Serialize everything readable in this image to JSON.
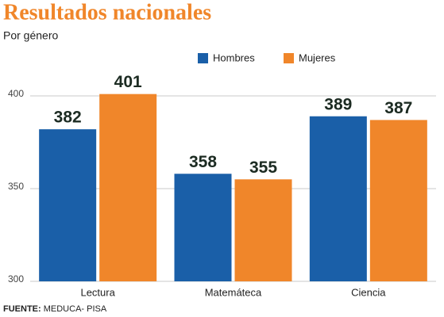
{
  "chart_data": {
    "type": "bar",
    "title": "Resultados nacionales",
    "subtitle": "Por género",
    "categories": [
      "Lectura",
      "Matemáteca",
      "Ciencia"
    ],
    "series": [
      {
        "name": "Hombres",
        "color": "#1a5fa8",
        "values": [
          382,
          358,
          389
        ]
      },
      {
        "name": "Mujeres",
        "color": "#f0862a",
        "values": [
          401,
          355,
          387
        ]
      }
    ],
    "ylim": [
      300,
      410
    ],
    "yticks": [
      300,
      350,
      400
    ],
    "grid": true,
    "source_label": "FUENTE:",
    "source_text": "MEDUCA- PISA"
  }
}
